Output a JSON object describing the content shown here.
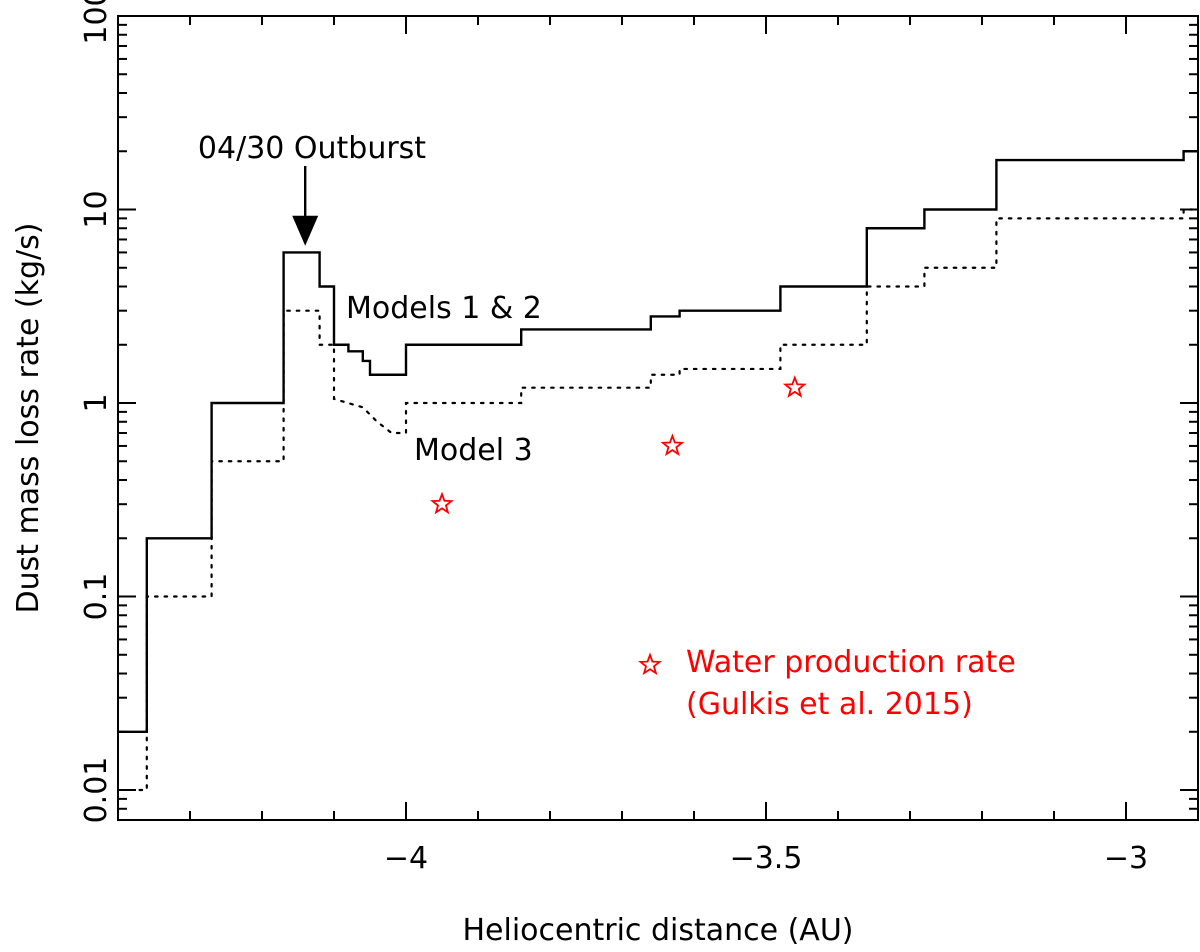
{
  "chart_data": {
    "type": "line",
    "xlabel": "Heliocentric distance (AU)",
    "ylabel": "Dust mass loss rate (kg/s)",
    "xlim": [
      -4.4,
      -2.9
    ],
    "ylim": [
      0.007,
      100
    ],
    "yscale": "log",
    "grid": false,
    "x_ticks": [
      {
        "value": -4,
        "label": "−4"
      },
      {
        "value": -3.5,
        "label": "−3.5"
      },
      {
        "value": -3,
        "label": "−3"
      }
    ],
    "y_ticks": [
      {
        "value": 0.01,
        "label": "0.01"
      },
      {
        "value": 0.1,
        "label": "0.1"
      },
      {
        "value": 1,
        "label": "1"
      },
      {
        "value": 10,
        "label": "10"
      },
      {
        "value": 100,
        "label": "100"
      }
    ],
    "series": [
      {
        "name": "Models 1 & 2",
        "style": "solid",
        "color": "#000000",
        "step_points": [
          [
            -4.4,
            0.02
          ],
          [
            -4.36,
            0.02
          ],
          [
            -4.36,
            0.2
          ],
          [
            -4.27,
            0.2
          ],
          [
            -4.27,
            1.0
          ],
          [
            -4.17,
            1.0
          ],
          [
            -4.17,
            6.0
          ],
          [
            -4.12,
            6.0
          ],
          [
            -4.12,
            4.0
          ],
          [
            -4.1,
            4.0
          ],
          [
            -4.1,
            2.0
          ],
          [
            -4.08,
            2.0
          ],
          [
            -4.08,
            1.85
          ],
          [
            -4.06,
            1.85
          ],
          [
            -4.06,
            1.65
          ],
          [
            -4.05,
            1.65
          ],
          [
            -4.05,
            1.4
          ],
          [
            -4.0,
            1.4
          ],
          [
            -4.0,
            2.0
          ],
          [
            -3.84,
            2.0
          ],
          [
            -3.84,
            2.4
          ],
          [
            -3.66,
            2.4
          ],
          [
            -3.66,
            2.8
          ],
          [
            -3.62,
            2.8
          ],
          [
            -3.62,
            3.0
          ],
          [
            -3.48,
            3.0
          ],
          [
            -3.48,
            4.0
          ],
          [
            -3.36,
            4.0
          ],
          [
            -3.36,
            8.0
          ],
          [
            -3.28,
            8.0
          ],
          [
            -3.28,
            10.0
          ],
          [
            -3.18,
            10.0
          ],
          [
            -3.18,
            18.0
          ],
          [
            -2.92,
            18.0
          ],
          [
            -2.92,
            20.0
          ],
          [
            -2.9,
            20.0
          ]
        ]
      },
      {
        "name": "Model 3",
        "style": "dotted",
        "color": "#000000",
        "step_points": [
          [
            -4.37,
            0.01
          ],
          [
            -4.36,
            0.01
          ],
          [
            -4.36,
            0.1
          ],
          [
            -4.27,
            0.1
          ],
          [
            -4.27,
            0.5
          ],
          [
            -4.17,
            0.5
          ],
          [
            -4.17,
            3.0
          ],
          [
            -4.12,
            3.0
          ],
          [
            -4.12,
            2.0
          ],
          [
            -4.1,
            2.0
          ],
          [
            -4.1,
            1.05
          ],
          [
            -4.06,
            0.95
          ],
          [
            -4.04,
            0.8
          ],
          [
            -4.02,
            0.7
          ],
          [
            -4.0,
            0.7
          ],
          [
            -4.0,
            1.0
          ],
          [
            -3.84,
            1.0
          ],
          [
            -3.84,
            1.2
          ],
          [
            -3.66,
            1.2
          ],
          [
            -3.66,
            1.4
          ],
          [
            -3.62,
            1.4
          ],
          [
            -3.62,
            1.5
          ],
          [
            -3.48,
            1.5
          ],
          [
            -3.48,
            2.0
          ],
          [
            -3.36,
            2.0
          ],
          [
            -3.36,
            4.0
          ],
          [
            -3.28,
            4.0
          ],
          [
            -3.28,
            5.0
          ],
          [
            -3.18,
            5.0
          ],
          [
            -3.18,
            9.0
          ],
          [
            -2.92,
            9.0
          ],
          [
            -2.92,
            10.0
          ],
          [
            -2.9,
            10.0
          ]
        ]
      },
      {
        "name": "Water production rate (Gulkis et al. 2015)",
        "style": "star-markers",
        "color": "#ff0000",
        "points": [
          {
            "x": -3.95,
            "y": 0.3
          },
          {
            "x": -3.63,
            "y": 0.6
          },
          {
            "x": -3.46,
            "y": 1.2
          }
        ]
      }
    ],
    "annotations": {
      "outburst": "04/30 Outburst",
      "models12": "Models 1 & 2",
      "model3": "Model 3",
      "legend_line1": "Water production rate",
      "legend_line2": "(Gulkis et al. 2015)"
    },
    "outburst_arrow": {
      "x": -4.14,
      "y_from": 25,
      "y_to": 6.5
    },
    "legend_placement": "bottom-right"
  }
}
